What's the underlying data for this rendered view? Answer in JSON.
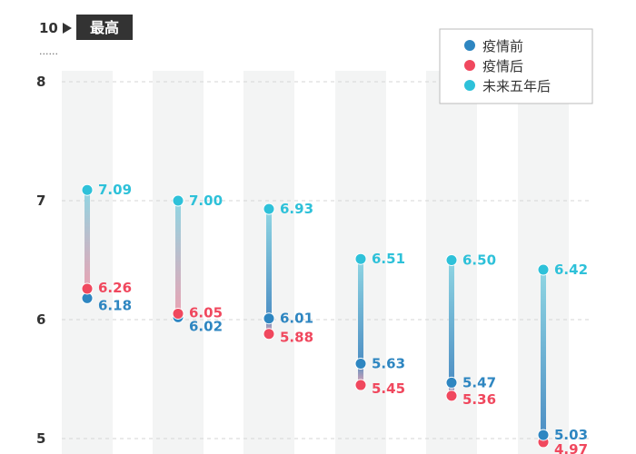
{
  "chart_data": {
    "type": "dumbbell",
    "title": "",
    "xlabel": "",
    "ylabel": "",
    "ylim": [
      5,
      8
    ],
    "y_ticks": [
      5,
      6,
      7,
      8
    ],
    "top_value": "10",
    "top_tag": "最高",
    "top_dots": "......",
    "grid": true,
    "legend_position": "top-right",
    "categories_visible": false,
    "series": [
      {
        "name": "疫情前",
        "color": "#2e86c1",
        "values": [
          6.18,
          6.02,
          6.01,
          5.63,
          5.47,
          5.03
        ]
      },
      {
        "name": "疫情后",
        "color": "#f0485e",
        "values": [
          6.26,
          6.05,
          5.88,
          5.45,
          5.36,
          4.97
        ]
      },
      {
        "name": "未来五年后",
        "color": "#2ec1d9",
        "values": [
          7.09,
          7.0,
          6.93,
          6.51,
          6.5,
          6.42
        ]
      }
    ]
  }
}
